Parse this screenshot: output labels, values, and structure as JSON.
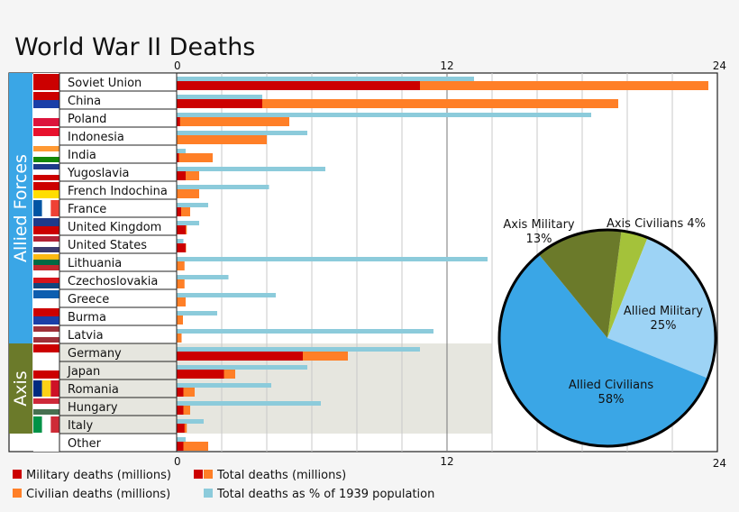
{
  "title": "World War II Deaths",
  "groups": [
    {
      "label": "Allied Forces",
      "color": "#3aa6e6"
    },
    {
      "label": "Axis",
      "color": "#6b7a2a"
    }
  ],
  "legend": {
    "military": "Military deaths (millions)",
    "total": "Total deaths (millions)",
    "civilian": "Civilian deaths (millions)",
    "percent": "Total deaths as % of 1939 population"
  },
  "colors": {
    "military": "#cc0000",
    "civilian": "#ff7f27",
    "percent": "#8ccbdb",
    "axis_shade": "#e6e6df",
    "pie_allied_military": "#9dd3f5",
    "pie_allied_civilians": "#3aa6e6",
    "pie_axis_military": "#6b7a2a",
    "pie_axis_civilians": "#a4c23a"
  },
  "chart_data": [
    {
      "type": "bar",
      "orientation": "horizontal",
      "title": "World War II Deaths",
      "axis_ticks": [
        "0",
        "12",
        "24"
      ],
      "xlim": [
        0,
        24
      ],
      "categories": [
        "Soviet Union",
        "China",
        "Poland",
        "Indonesia",
        "India",
        "Yugoslavia",
        "French Indochina",
        "France",
        "United Kingdom",
        "United States",
        "Lithuania",
        "Czechoslovakia",
        "Greece",
        "Burma",
        "Latvia",
        "Germany",
        "Japan",
        "Romania",
        "Hungary",
        "Italy",
        "Other"
      ],
      "category_groups": [
        "Allied Forces",
        "Allied Forces",
        "Allied Forces",
        "Allied Forces",
        "Allied Forces",
        "Allied Forces",
        "Allied Forces",
        "Allied Forces",
        "Allied Forces",
        "Allied Forces",
        "Allied Forces",
        "Allied Forces",
        "Allied Forces",
        "Allied Forces",
        "Allied Forces",
        "Axis",
        "Axis",
        "Axis",
        "Axis",
        "Axis",
        ""
      ],
      "series": [
        {
          "name": "Military deaths (millions)",
          "values": [
            10.8,
            3.8,
            0.15,
            0,
            0.1,
            0.4,
            0,
            0.2,
            0.4,
            0.4,
            0,
            0,
            0,
            0,
            0,
            5.6,
            2.1,
            0.3,
            0.3,
            0.35,
            0.3
          ]
        },
        {
          "name": "Total deaths (millions)",
          "values": [
            23.6,
            19.6,
            5.0,
            4.0,
            1.6,
            1.0,
            1.0,
            0.6,
            0.45,
            0.42,
            0.35,
            0.35,
            0.4,
            0.28,
            0.22,
            7.6,
            2.6,
            0.8,
            0.6,
            0.45,
            1.4
          ]
        },
        {
          "name": "Total deaths as % of 1939 population",
          "values": [
            13.2,
            3.8,
            18.4,
            5.8,
            0.4,
            6.6,
            4.1,
            1.4,
            1.0,
            0.3,
            13.8,
            2.3,
            4.4,
            1.8,
            11.4,
            10.8,
            5.8,
            4.2,
            6.4,
            1.2,
            0.4
          ]
        }
      ]
    },
    {
      "type": "pie",
      "slices": [
        {
          "label": "Allied Military",
          "pct_label": "25%",
          "value": 25,
          "color": "#9dd3f5"
        },
        {
          "label": "Allied Civilians",
          "pct_label": "58%",
          "value": 58,
          "color": "#3aa6e6"
        },
        {
          "label": "Axis Military",
          "pct_label": "13%",
          "value": 13,
          "color": "#6b7a2a"
        },
        {
          "label": "Axis Civilians",
          "pct_label": "4%",
          "value": 4,
          "color": "#a4c23a"
        }
      ]
    }
  ]
}
